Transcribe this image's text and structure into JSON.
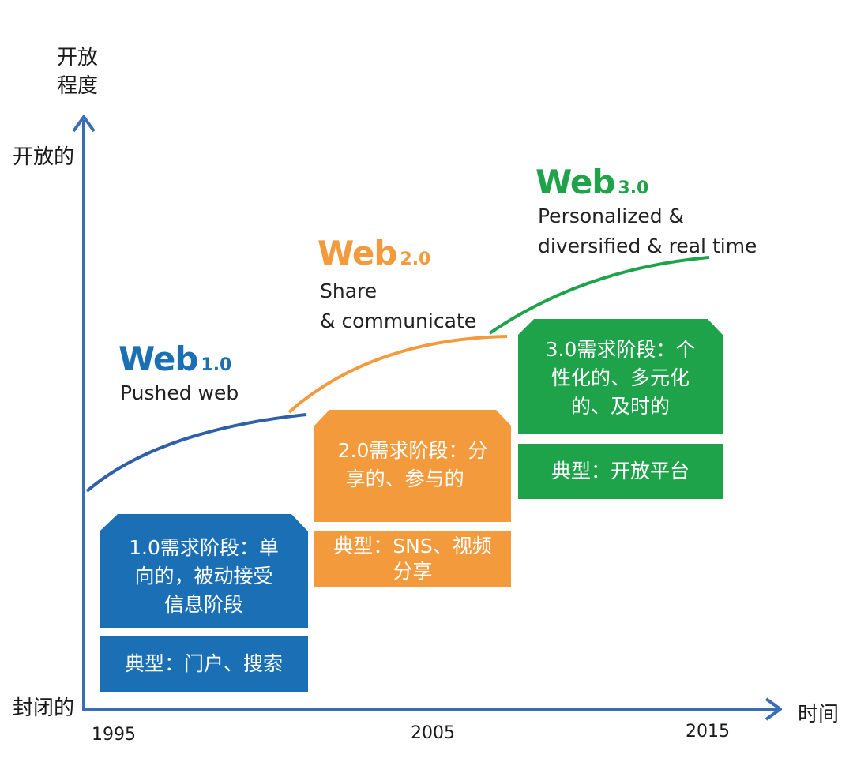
{
  "axes": {
    "y_label_line1": "开放",
    "y_label_line2": "程度",
    "y_top": "开放的",
    "y_bottom": "封闭的",
    "x_label": "时间",
    "years": [
      "1995",
      "2005",
      "2015"
    ]
  },
  "stages": [
    {
      "title": "Web",
      "version": "1.0",
      "color": "#1a6fb5",
      "description": [
        "Pushed web"
      ],
      "need": [
        "1.0需求阶段：单",
        "向的，被动接受",
        "信息阶段"
      ],
      "typical": [
        "典型：门户、搜索"
      ]
    },
    {
      "title": "Web",
      "version": "2.0",
      "color": "#f39a3c",
      "description": [
        "Share",
        "& communicate"
      ],
      "need": [
        "2.0需求阶段：分",
        "享的、参与的"
      ],
      "typical": [
        "典型：SNS、视频",
        "分享"
      ]
    },
    {
      "title": "Web",
      "version": "3.0",
      "color": "#1fa34a",
      "description": [
        "Personalized &",
        "diversified & real time"
      ],
      "need": [
        "3.0需求阶段：个",
        "性化的、多元化",
        "的、及时的"
      ],
      "typical": [
        "典型：开放平台"
      ]
    }
  ]
}
